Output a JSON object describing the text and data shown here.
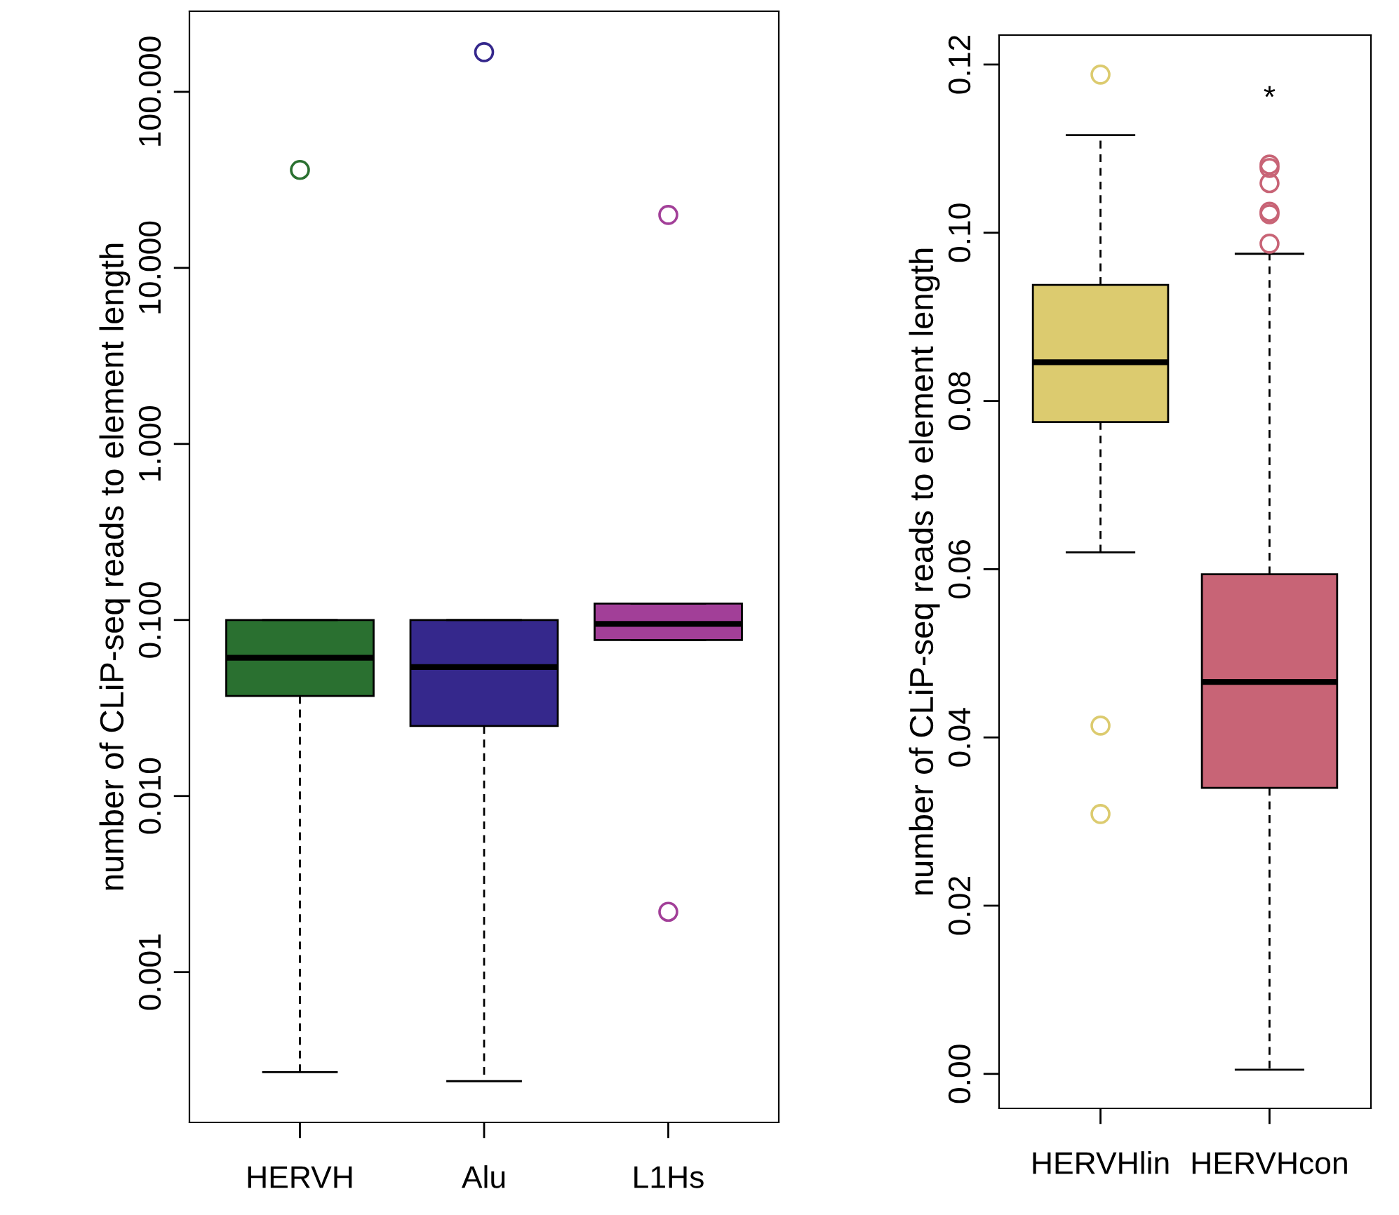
{
  "chart_data": [
    {
      "type": "box",
      "categories": [
        "HERVH",
        "Alu",
        "L1Hs"
      ],
      "colors": [
        "#2a7030",
        "#35288c",
        "#a23f98"
      ],
      "ylabel": "number of CLiP-seq reads to element length",
      "log": "y",
      "grid": false,
      "ylim": [
        0.00014,
        287
      ],
      "yticks": [
        {
          "value": 0.001,
          "label": "0.001"
        },
        {
          "value": 0.01,
          "label": "0.010"
        },
        {
          "value": 0.1,
          "label": "0.100"
        },
        {
          "value": 1,
          "label": "1.000"
        },
        {
          "value": 10,
          "label": "10.000"
        },
        {
          "value": 100,
          "label": "100.000"
        }
      ],
      "boxes": [
        {
          "low": 0.00027,
          "q1": 0.037,
          "median": 0.061,
          "q3": 0.1,
          "high": 0.1,
          "outliers": [
            36
          ]
        },
        {
          "low": 0.00024,
          "q1": 0.025,
          "median": 0.054,
          "q3": 0.1,
          "high": 0.1,
          "outliers": [
            168
          ]
        },
        {
          "low": 0.077,
          "q1": 0.077,
          "median": 0.095,
          "q3": 0.124,
          "high": 0.124,
          "outliers": [
            20,
            0.0022
          ]
        }
      ]
    },
    {
      "type": "box",
      "categories": [
        "HERVHlin",
        "HERVHcon"
      ],
      "colors": [
        "#dccb6f",
        "#c86476"
      ],
      "ylabel": "number of CLiP-seq reads to element length",
      "grid": false,
      "ylim": [
        -0.0041,
        0.1235
      ],
      "yticks": [
        {
          "value": 0,
          "label": "0.00"
        },
        {
          "value": 0.02,
          "label": "0.02"
        },
        {
          "value": 0.04,
          "label": "0.04"
        },
        {
          "value": 0.06,
          "label": "0.06"
        },
        {
          "value": 0.08,
          "label": "0.08"
        },
        {
          "value": 0.1,
          "label": "0.10"
        },
        {
          "value": 0.12,
          "label": "0.12"
        }
      ],
      "boxes": [
        {
          "low": 0.062,
          "q1": 0.0775,
          "median": 0.0846,
          "q3": 0.0938,
          "high": 0.1116,
          "outliers": [
            0.1188,
            0.0414,
            0.0309
          ]
        },
        {
          "low": 0.0005,
          "q1": 0.034,
          "median": 0.0466,
          "q3": 0.0594,
          "high": 0.0975,
          "outliers": [
            0.1081,
            0.1077,
            0.1059,
            0.1025,
            0.1022,
            0.0987
          ]
        }
      ],
      "annotations": [
        "*"
      ]
    }
  ]
}
